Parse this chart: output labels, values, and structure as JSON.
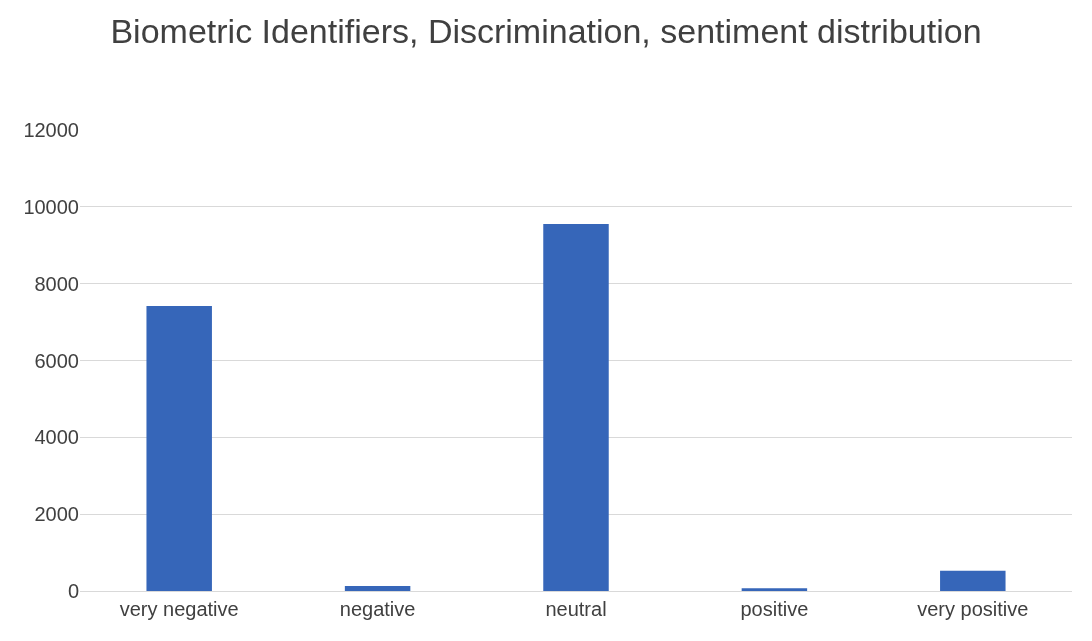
{
  "chart_data": {
    "type": "bar",
    "title": "Biometric Identifiers, Discrimination, sentiment distribution",
    "categories": [
      "very negative",
      "negative",
      "neutral",
      "positive",
      "very positive"
    ],
    "values": [
      7420,
      130,
      9550,
      70,
      530
    ],
    "color": "#3666b9",
    "ylim": [
      0,
      12000
    ],
    "yticks": [
      0,
      2000,
      4000,
      6000,
      8000,
      10000,
      12000
    ],
    "grid": "y"
  }
}
